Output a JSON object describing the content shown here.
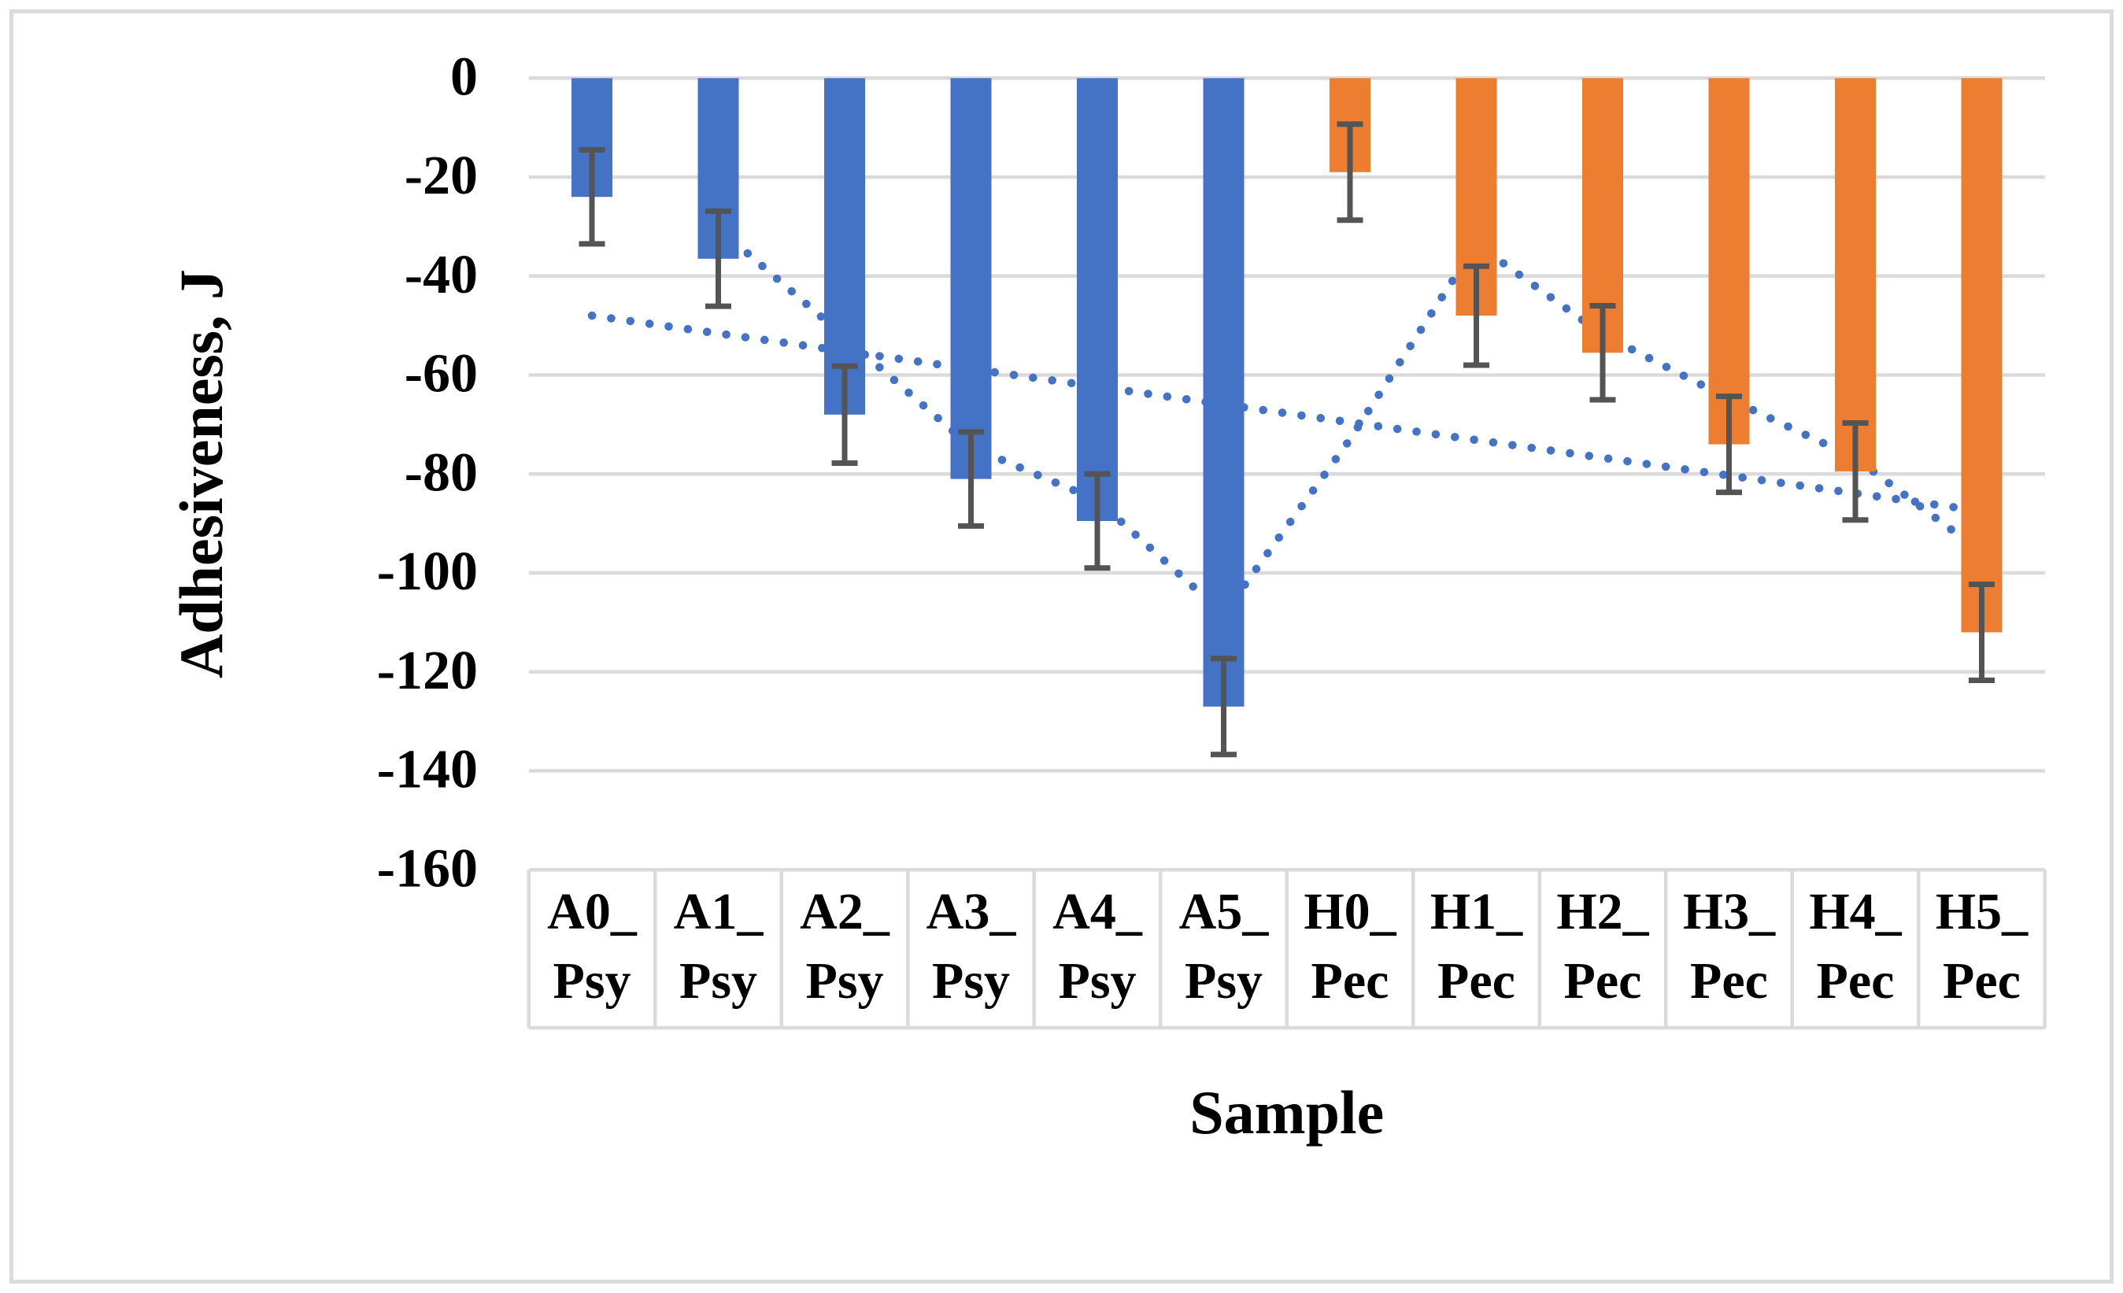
{
  "figure": {
    "background": "#ffffff",
    "border_color": "#dbdbdb"
  },
  "chart_data": {
    "type": "bar",
    "orientation": "vertical",
    "title": "",
    "xlabel": "Sample",
    "ylabel": "Adhesiveness, J",
    "ylim": [
      -160,
      0
    ],
    "ytick_interval": 20,
    "ytick_labels": [
      "0",
      "-20",
      "-40",
      "-60",
      "-80",
      "-100",
      "-120",
      "-140",
      "-160"
    ],
    "grid": true,
    "legend": false,
    "colors": {
      "blue": "#4472c4",
      "orange": "#ed7d31",
      "error_bar": "#545454",
      "gridline": "#dadada",
      "trendline": "#4472c4"
    },
    "categories": [
      {
        "id": "A0_Psy",
        "label_line1": "A0_",
        "label_line2": "Psy",
        "value": -24,
        "error": 9.5,
        "color_key": "blue"
      },
      {
        "id": "A1_Psy",
        "label_line1": "A1_",
        "label_line2": "Psy",
        "value": -36.5,
        "error": 9.6,
        "color_key": "blue"
      },
      {
        "id": "A2_Psy",
        "label_line1": "A2_",
        "label_line2": "Psy",
        "value": -68,
        "error": 9.8,
        "color_key": "blue"
      },
      {
        "id": "A3_Psy",
        "label_line1": "A3_",
        "label_line2": "Psy",
        "value": -81,
        "error": 9.5,
        "color_key": "blue"
      },
      {
        "id": "A4_Psy",
        "label_line1": "A4_",
        "label_line2": "Psy",
        "value": -89.5,
        "error": 9.5,
        "color_key": "blue"
      },
      {
        "id": "A5_Psy",
        "label_line1": "A5_",
        "label_line2": "Psy",
        "value": -127,
        "error": 9.7,
        "color_key": "blue"
      },
      {
        "id": "H0_Pec",
        "label_line1": "H0_",
        "label_line2": "Pec",
        "value": -19,
        "error": 9.7,
        "color_key": "orange"
      },
      {
        "id": "H1_Pec",
        "label_line1": "H1_",
        "label_line2": "Pec",
        "value": -48,
        "error": 10,
        "color_key": "orange"
      },
      {
        "id": "H2_Pec",
        "label_line1": "H2_",
        "label_line2": "Pec",
        "value": -55.5,
        "error": 9.5,
        "color_key": "orange"
      },
      {
        "id": "H3_Pec",
        "label_line1": "H3_",
        "label_line2": "Pec",
        "value": -74,
        "error": 9.7,
        "color_key": "orange"
      },
      {
        "id": "H4_Pec",
        "label_line1": "H4_",
        "label_line2": "Pec",
        "value": -79.5,
        "error": 9.8,
        "color_key": "orange"
      },
      {
        "id": "H5_Pec",
        "label_line1": "H5_",
        "label_line2": "Pec",
        "value": -112,
        "error": 9.7,
        "color_key": "orange"
      }
    ],
    "trendlines": [
      {
        "name": "linear-trendline",
        "style": "dotted",
        "color_key": "trendline",
        "start_category": "A0_Psy",
        "end_category": "H5_Pec",
        "start_value": -48,
        "end_value": -87.5
      },
      {
        "name": "moving-average-trendline",
        "style": "dotted",
        "color_key": "trendline",
        "period": 2,
        "categories": [
          "A1_Psy",
          "A2_Psy",
          "A3_Psy",
          "A4_Psy",
          "A5_Psy",
          "H0_Pec",
          "H1_Pec",
          "H2_Pec",
          "H3_Pec",
          "H4_Pec",
          "H5_Pec"
        ],
        "values": [
          -30.3,
          -52.3,
          -74.5,
          -85.3,
          -108.3,
          -73,
          -33.5,
          -51.8,
          -64.8,
          -76.8,
          -95.8
        ]
      }
    ]
  }
}
